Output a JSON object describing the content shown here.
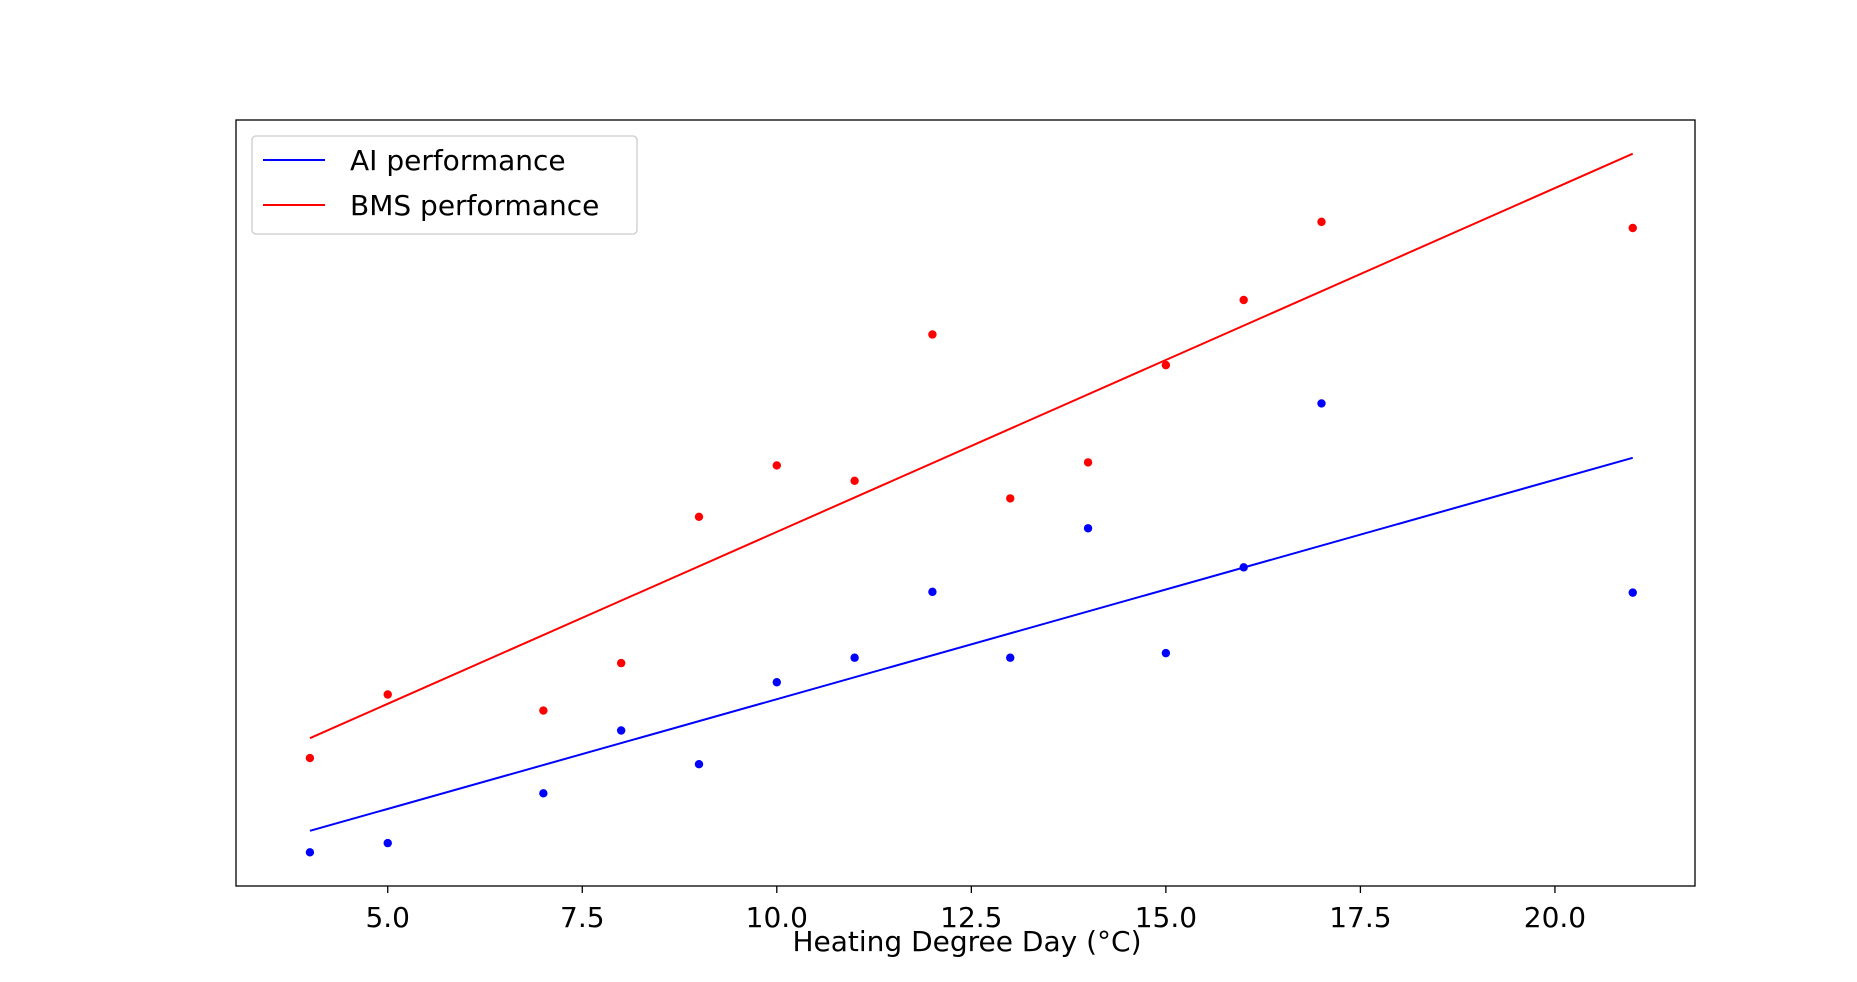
{
  "chart_data": {
    "type": "scatter",
    "title": "",
    "xlabel": "Heating Degree Day (°C)",
    "ylabel": "",
    "xlim": [
      3.05,
      21.8
    ],
    "ylim": [
      0.0,
      1.0
    ],
    "y_ticks_shown": false,
    "x_ticks": [
      5.0,
      7.5,
      10.0,
      12.5,
      15.0,
      17.5,
      20.0
    ],
    "x_tick_labels": [
      "5.0",
      "7.5",
      "10.0",
      "12.5",
      "15.0",
      "17.5",
      "20.0"
    ],
    "grid": false,
    "legend_position": "top-left",
    "legend": [
      {
        "label": "AI performance",
        "color": "#0000ff"
      },
      {
        "label": "BMS performance",
        "color": "#ff0000"
      }
    ],
    "series": [
      {
        "name": "AI performance",
        "color": "#0000ff",
        "points": {
          "x": [
            4,
            5,
            7,
            8,
            9,
            10,
            11,
            12,
            13,
            14,
            15,
            16,
            17,
            21
          ],
          "y": [
            0.044,
            0.056,
            0.121,
            0.203,
            0.159,
            0.266,
            0.298,
            0.384,
            0.298,
            0.467,
            0.304,
            0.416,
            0.63,
            0.383
          ]
        },
        "fit_line": {
          "x": [
            4,
            21
          ],
          "y": [
            0.072,
            0.559
          ]
        }
      },
      {
        "name": "BMS performance",
        "color": "#ff0000",
        "points": {
          "x": [
            4,
            5,
            7,
            8,
            9,
            10,
            11,
            12,
            13,
            14,
            15,
            16,
            17,
            21
          ],
          "y": [
            0.167,
            0.25,
            0.229,
            0.291,
            0.482,
            0.549,
            0.529,
            0.72,
            0.506,
            0.553,
            0.68,
            0.765,
            0.867,
            0.859
          ]
        },
        "fit_line": {
          "x": [
            4,
            21
          ],
          "y": [
            0.193,
            0.956
          ]
        }
      }
    ]
  }
}
